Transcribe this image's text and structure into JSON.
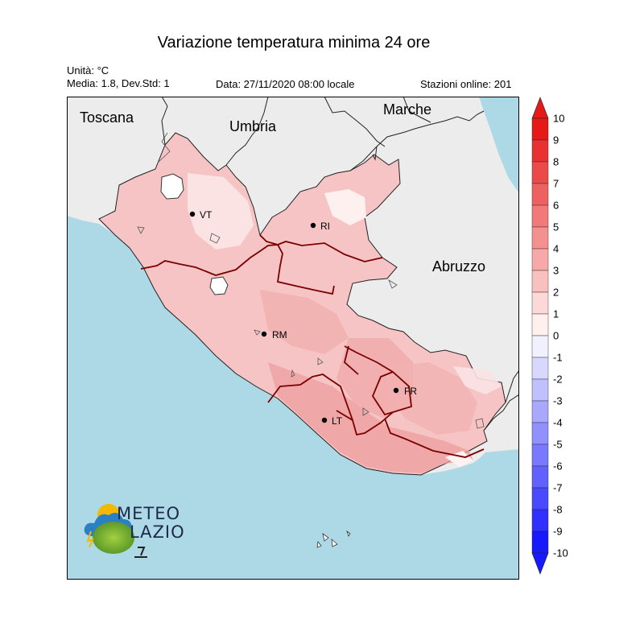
{
  "header": {
    "title": "Variazione temperatura minima 24 ore",
    "unit": "Unità: °C",
    "stats": "Media: 1.8, Dev.Std: 1",
    "date": "Data: 27/11/2020 08:00 locale",
    "stations": "Stazioni online: 201"
  },
  "map": {
    "regions": [
      "Toscana",
      "Umbria",
      "Marche",
      "Abruzzo"
    ],
    "cities": [
      "VT",
      "RI",
      "RM",
      "FR",
      "LT"
    ],
    "colors": {
      "sea": "#add8e6",
      "outside": "#ececec",
      "region_base": "#f6c4c4"
    }
  },
  "colorbar": {
    "ticks": [
      "10",
      "9",
      "8",
      "7",
      "6",
      "5",
      "4",
      "3",
      "2",
      "1",
      "0",
      "-1",
      "-2",
      "-3",
      "-4",
      "-5",
      "-6",
      "-7",
      "-8",
      "-9",
      "-10"
    ]
  },
  "logo": {
    "line1": "METEO",
    "line2": "LAZIO"
  }
}
